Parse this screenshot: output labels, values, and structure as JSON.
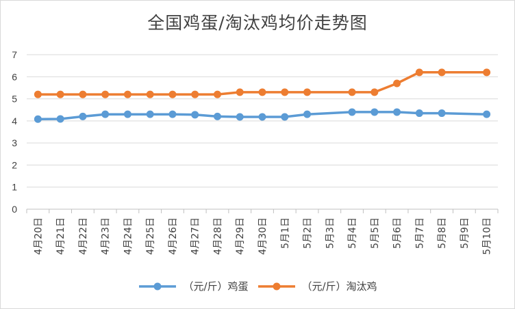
{
  "chart_data": {
    "type": "line",
    "title": "全国鸡蛋/淘汰鸡均价走势图",
    "categories": [
      "4月20日",
      "4月21日",
      "4月22日",
      "4月23日",
      "4月24日",
      "4月25日",
      "4月26日",
      "4月27日",
      "4月28日",
      "4月29日",
      "4月30日",
      "5月1日",
      "5月2日",
      "5月3日",
      "5月4日",
      "5月5日",
      "5月6日",
      "5月7日",
      "5月8日",
      "5月9日",
      "5月10日"
    ],
    "ylim": [
      0,
      7
    ],
    "yticks": [
      0,
      1,
      2,
      3,
      4,
      5,
      6,
      7
    ],
    "grid": true,
    "legend_position": "bottom",
    "series": [
      {
        "name": "（元/斤）鸡蛋",
        "color": "#5b9bd5",
        "values": [
          4.08,
          4.09,
          4.2,
          4.3,
          4.3,
          4.3,
          4.3,
          4.28,
          4.2,
          4.18,
          4.18,
          4.18,
          4.3,
          null,
          4.4,
          4.4,
          4.4,
          4.35,
          4.35,
          null,
          4.3
        ]
      },
      {
        "name": "（元/斤）淘汰鸡",
        "color": "#ed7d31",
        "values": [
          5.2,
          5.2,
          5.2,
          5.2,
          5.2,
          5.2,
          5.2,
          5.2,
          5.2,
          5.3,
          5.3,
          5.3,
          5.3,
          null,
          5.3,
          5.3,
          5.7,
          6.2,
          6.2,
          null,
          6.2
        ]
      }
    ]
  }
}
